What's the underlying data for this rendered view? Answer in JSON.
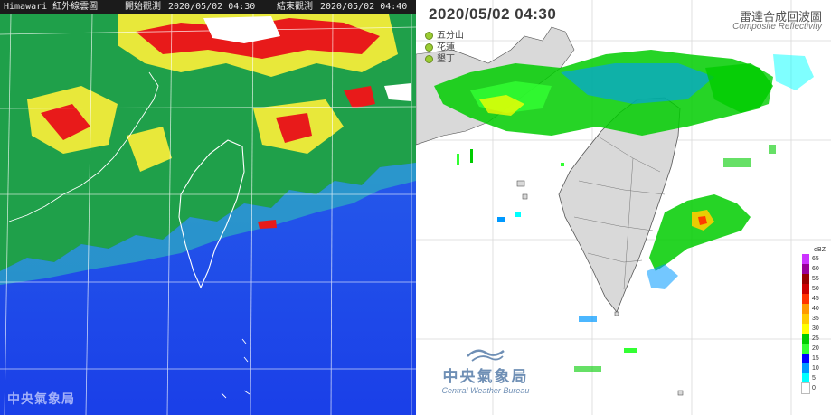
{
  "satellite": {
    "title": "Himawari 紅外線雲圖",
    "start_label": "開始觀測",
    "start_time": "2020/05/02 04:30",
    "end_label": "結束觀測",
    "end_time": "2020/05/02 04:40",
    "watermark": "中央氣象局",
    "colors": {
      "sea": "#1f4fe6",
      "cloud_low": "#1fa04a",
      "cloud_mid": "#e8e83a",
      "cloud_high": "#e81a1a",
      "cloud_top": "#ffffff"
    }
  },
  "radar": {
    "time": "2020/05/02  04:30",
    "title": "雷達合成回波圖",
    "subtitle": "Composite Reflectivity",
    "stations": [
      "五分山",
      "花蓮",
      "墾丁"
    ],
    "logo_name": "中央氣象局",
    "logo_english": "Central Weather Bureau",
    "legend": {
      "unit": "dBZ",
      "levels": [
        {
          "value": "65",
          "color": "#cc33ff"
        },
        {
          "value": "60",
          "color": "#990099"
        },
        {
          "value": "55",
          "color": "#990000"
        },
        {
          "value": "50",
          "color": "#cc0000"
        },
        {
          "value": "45",
          "color": "#ff3300"
        },
        {
          "value": "40",
          "color": "#ff9900"
        },
        {
          "value": "35",
          "color": "#ffcc00"
        },
        {
          "value": "30",
          "color": "#ffff00"
        },
        {
          "value": "25",
          "color": "#00cc00"
        },
        {
          "value": "20",
          "color": "#33ff33"
        },
        {
          "value": "15",
          "color": "#0000ff"
        },
        {
          "value": "10",
          "color": "#0099ff"
        },
        {
          "value": "5",
          "color": "#00ffff"
        },
        {
          "value": "0",
          "color": "#ffffff"
        }
      ]
    }
  }
}
